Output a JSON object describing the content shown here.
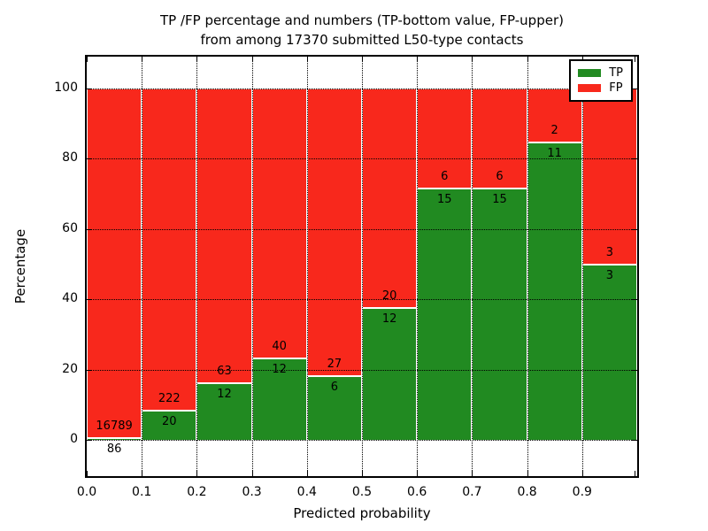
{
  "title": {
    "line1": "TP /FP percentage and numbers (TP-bottom value, FP-upper)",
    "line2": "from among 17370 submitted L50-type contacts"
  },
  "axes": {
    "xlabel": "Predicted probability",
    "ylabel": "Percentage",
    "xtick_labels": [
      "0.0",
      "0.1",
      "0.2",
      "0.3",
      "0.4",
      "0.5",
      "0.6",
      "0.7",
      "0.8",
      "0.9"
    ],
    "ytick_labels": [
      "0",
      "20",
      "40",
      "60",
      "80",
      "100"
    ],
    "ytick_values": [
      0,
      20,
      40,
      60,
      80,
      100
    ]
  },
  "legend": {
    "items": [
      {
        "label": "TP",
        "color": "#218a21"
      },
      {
        "label": "FP",
        "color": "#f8281c"
      }
    ]
  },
  "colors": {
    "tp": "#218a21",
    "fp": "#f8281c",
    "bar_edge": "#ffffff",
    "grid": "#000000",
    "spine": "#000000"
  },
  "chart_data": {
    "type": "bar",
    "stacked": true,
    "title": "TP /FP percentage and numbers (TP-bottom value, FP-upper) from among 17370 submitted L50-type contacts",
    "xlabel": "Predicted probability",
    "ylabel": "Percentage",
    "total_contacts": 17370,
    "bin_edges": [
      0.0,
      0.1,
      0.2,
      0.3,
      0.4,
      0.5,
      0.6,
      0.7,
      0.8,
      0.9,
      1.0
    ],
    "categories": [
      "0.0-0.1",
      "0.1-0.2",
      "0.2-0.3",
      "0.3-0.4",
      "0.4-0.5",
      "0.5-0.6",
      "0.6-0.7",
      "0.7-0.8",
      "0.8-0.9",
      "0.9-1.0"
    ],
    "series": [
      {
        "name": "TP",
        "color": "#218a21",
        "counts": [
          86,
          20,
          12,
          12,
          6,
          12,
          15,
          15,
          11,
          3
        ],
        "percent": [
          0.51,
          8.26,
          16.0,
          23.08,
          18.18,
          37.5,
          71.43,
          71.43,
          84.62,
          50.0
        ]
      },
      {
        "name": "FP",
        "color": "#f8281c",
        "counts": [
          16789,
          222,
          63,
          40,
          27,
          20,
          6,
          6,
          2,
          3
        ],
        "percent": [
          99.49,
          91.74,
          84.0,
          76.92,
          81.82,
          62.5,
          28.57,
          28.57,
          15.38,
          50.0
        ]
      }
    ],
    "annotations": "FP count above TP/FP boundary, TP count below boundary; bars stacked to 100%",
    "ylim": [
      -10.8,
      109.6
    ],
    "xlim": [
      0.0,
      1.0
    ],
    "grid": "dotted black, both axes, drawn above bars",
    "legend_position": "upper right"
  }
}
